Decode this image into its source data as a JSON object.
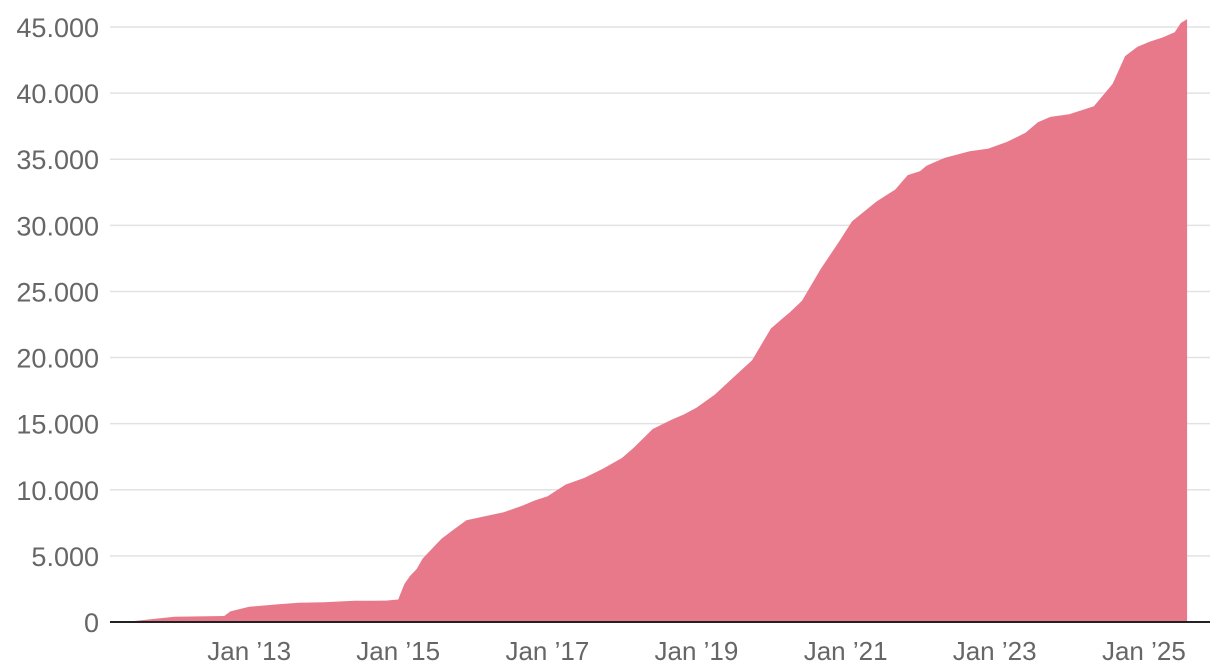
{
  "chart_data": {
    "type": "area",
    "title": "",
    "xlabel": "",
    "ylabel": "",
    "ylim": [
      0,
      45000
    ],
    "xlim": [
      "2011-03-01",
      "2025-08-15"
    ],
    "yticks": [
      {
        "value": 0,
        "label": "0"
      },
      {
        "value": 5000,
        "label": "5.000"
      },
      {
        "value": 10000,
        "label": "10.000"
      },
      {
        "value": 15000,
        "label": "15.000"
      },
      {
        "value": 20000,
        "label": "20.000"
      },
      {
        "value": 25000,
        "label": "25.000"
      },
      {
        "value": 30000,
        "label": "30.000"
      },
      {
        "value": 35000,
        "label": "35.000"
      },
      {
        "value": 40000,
        "label": "40.000"
      },
      {
        "value": 45000,
        "label": "45.000"
      }
    ],
    "xticks": [
      {
        "date": "2013-01-01",
        "label": "Jan ’13"
      },
      {
        "date": "2015-01-01",
        "label": "Jan ’15"
      },
      {
        "date": "2017-01-01",
        "label": "Jan ’17"
      },
      {
        "date": "2019-01-01",
        "label": "Jan ’19"
      },
      {
        "date": "2021-01-01",
        "label": "Jan ’21"
      },
      {
        "date": "2023-01-01",
        "label": "Jan ’23"
      },
      {
        "date": "2025-01-01",
        "label": "Jan ’25"
      }
    ],
    "grid": true,
    "legend": "none",
    "color": "#e8798a",
    "series": [
      {
        "x": [
          "2011-03-01",
          "2011-05-01",
          "2011-09-01",
          "2012-01-01",
          "2012-05-01",
          "2012-09-01",
          "2012-10-01",
          "2013-01-01",
          "2013-06-01",
          "2013-09-01",
          "2014-01-01",
          "2014-06-01",
          "2014-09-01",
          "2014-11-01",
          "2015-01-01",
          "2015-02-01",
          "2015-03-01",
          "2015-04-01",
          "2015-05-01",
          "2015-06-01",
          "2015-08-01",
          "2015-10-01",
          "2015-12-01",
          "2016-03-01",
          "2016-06-01",
          "2016-09-01",
          "2016-11-01",
          "2017-01-01",
          "2017-04-01",
          "2017-07-01",
          "2017-10-01",
          "2018-01-01",
          "2018-03-01",
          "2018-06-01",
          "2018-09-01",
          "2018-11-01",
          "2019-01-01",
          "2019-04-01",
          "2019-07-01",
          "2019-10-01",
          "2020-01-01",
          "2020-03-01",
          "2020-04-01",
          "2020-06-01",
          "2020-09-01",
          "2020-12-01",
          "2021-02-01",
          "2021-06-01",
          "2021-09-01",
          "2021-11-01",
          "2022-01-01",
          "2022-02-01",
          "2022-05-01",
          "2022-09-01",
          "2022-12-01",
          "2023-03-01",
          "2023-06-01",
          "2023-08-01",
          "2023-10-01",
          "2024-01-01",
          "2024-05-01",
          "2024-08-01",
          "2024-10-01",
          "2024-12-01",
          "2025-02-01",
          "2025-04-01",
          "2025-06-01",
          "2025-07-01",
          "2025-08-01"
        ],
        "values": [
          0,
          0,
          200,
          400,
          420,
          450,
          800,
          1150,
          1350,
          1450,
          1500,
          1600,
          1600,
          1620,
          1700,
          2900,
          3500,
          4000,
          4800,
          5300,
          6300,
          7000,
          7700,
          8000,
          8300,
          8800,
          9200,
          9500,
          10400,
          10900,
          11600,
          12400,
          13200,
          14600,
          15300,
          15700,
          16200,
          17200,
          18500,
          19800,
          22200,
          23000,
          23400,
          24300,
          26700,
          28800,
          30300,
          31800,
          32700,
          33800,
          34100,
          34500,
          35100,
          35600,
          35800,
          36300,
          37000,
          37800,
          38200,
          38400,
          39000,
          40700,
          42800,
          43500,
          43900,
          44200,
          44600,
          45300,
          45600
        ]
      }
    ]
  }
}
